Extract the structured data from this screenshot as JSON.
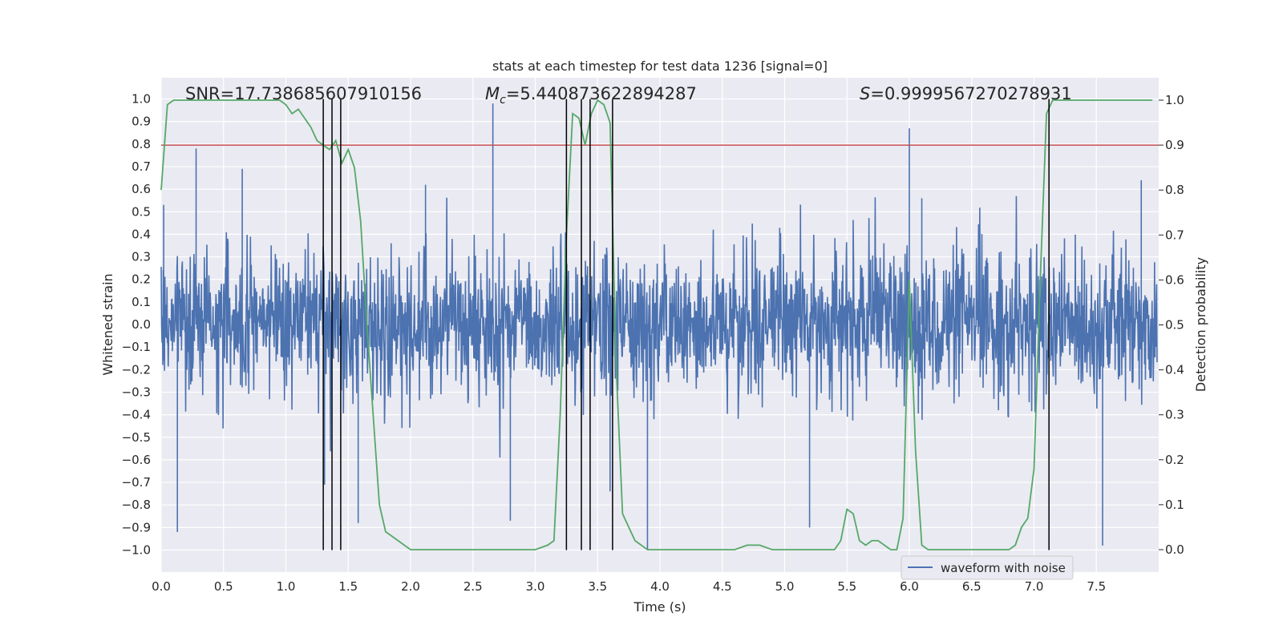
{
  "chart_data": {
    "type": "line",
    "title": "stats at each timestep for test data 1236 [signal=0]",
    "xlabel": "Time (s)",
    "ylabel_left": "Whitened strain",
    "ylabel_right": "Detection probability",
    "xlim": [
      0.0,
      8.0
    ],
    "ylim_left": [
      -1.1,
      1.05
    ],
    "ylim_right": [
      -0.05,
      1.035
    ],
    "x_ticks": [
      "0.0",
      "0.5",
      "1.0",
      "1.5",
      "2.0",
      "2.5",
      "3.0",
      "3.5",
      "4.0",
      "4.5",
      "5.0",
      "5.5",
      "6.0",
      "6.5",
      "7.0",
      "7.5"
    ],
    "y_ticks_left": [
      "1.0",
      "0.9",
      "0.8",
      "0.7",
      "0.6",
      "0.5",
      "0.4",
      "0.3",
      "0.2",
      "0.1",
      "0.0",
      "−0.1",
      "−0.2",
      "−0.3",
      "−0.4",
      "−0.5",
      "−0.6",
      "−0.7",
      "−0.8",
      "−0.9",
      "−1.0"
    ],
    "y_ticks_right": [
      "1.0",
      "0.9",
      "0.8",
      "0.7",
      "0.6",
      "0.5",
      "0.4",
      "0.3",
      "0.2",
      "0.1",
      "0.0"
    ],
    "annotations": {
      "snr": "SNR=17.738685607910156",
      "mc_prefix": "M",
      "mc_sub": "c",
      "mc_value": "=5.440873622894287",
      "s_prefix": "S",
      "s_value": "=0.9999567270278931"
    },
    "grid": true,
    "legend": {
      "position": "lower-right",
      "entries": [
        "waveform with noise"
      ]
    },
    "threshold_right": 0.9,
    "vlines_x": [
      1.3,
      1.37,
      1.44,
      3.25,
      3.37,
      3.44,
      3.62,
      7.12
    ],
    "colors": {
      "waveform": "#4c72b0",
      "probability": "#55a868",
      "threshold": "#c44e52",
      "vlines": "#000000",
      "background": "#eaeaf2",
      "grid": "#ffffff"
    },
    "series": [
      {
        "name": "waveform with noise",
        "axis": "left",
        "typical_abs_amplitude": 0.35,
        "sample_peaks": [
          [
            0.02,
            0.53
          ],
          [
            0.13,
            -0.92
          ],
          [
            0.28,
            0.78
          ],
          [
            0.65,
            0.69
          ],
          [
            1.31,
            -0.71
          ],
          [
            1.58,
            -0.88
          ],
          [
            2.12,
            0.62
          ],
          [
            2.66,
            0.98
          ],
          [
            2.8,
            -0.87
          ],
          [
            3.6,
            -0.74
          ],
          [
            3.9,
            -1.0
          ],
          [
            5.2,
            -0.9
          ],
          [
            6.0,
            0.87
          ],
          [
            6.1,
            0.56
          ],
          [
            7.55,
            -0.98
          ],
          [
            7.86,
            0.64
          ]
        ]
      },
      {
        "name": "detection probability",
        "axis": "right",
        "x": [
          0.0,
          0.05,
          0.1,
          0.2,
          0.3,
          0.5,
          0.7,
          0.9,
          0.95,
          1.0,
          1.05,
          1.1,
          1.2,
          1.25,
          1.3,
          1.35,
          1.4,
          1.45,
          1.5,
          1.55,
          1.6,
          1.65,
          1.7,
          1.75,
          1.8,
          1.9,
          2.0,
          2.1,
          2.2,
          2.3,
          2.4,
          2.5,
          2.6,
          2.7,
          2.8,
          2.9,
          3.0,
          3.1,
          3.15,
          3.2,
          3.25,
          3.3,
          3.35,
          3.4,
          3.45,
          3.5,
          3.55,
          3.6,
          3.65,
          3.7,
          3.75,
          3.8,
          3.9,
          4.0,
          4.2,
          4.4,
          4.5,
          4.6,
          4.7,
          4.8,
          4.9,
          5.0,
          5.1,
          5.2,
          5.3,
          5.4,
          5.45,
          5.5,
          5.55,
          5.6,
          5.65,
          5.7,
          5.75,
          5.8,
          5.85,
          5.9,
          5.95,
          6.0,
          6.05,
          6.1,
          6.15,
          6.2,
          6.25,
          6.3,
          6.35,
          6.4,
          6.5,
          6.6,
          6.7,
          6.8,
          6.85,
          6.9,
          6.95,
          7.0,
          7.05,
          7.1,
          7.15,
          7.2,
          7.25,
          7.3,
          7.5,
          7.7,
          7.95
        ],
        "y": [
          0.8,
          0.99,
          1.0,
          1.0,
          1.0,
          1.0,
          1.0,
          1.0,
          1.0,
          0.99,
          0.97,
          0.98,
          0.94,
          0.91,
          0.9,
          0.89,
          0.91,
          0.86,
          0.89,
          0.85,
          0.73,
          0.5,
          0.3,
          0.1,
          0.04,
          0.02,
          0.0,
          0.0,
          0.0,
          0.0,
          0.0,
          0.0,
          0.0,
          0.0,
          0.0,
          0.0,
          0.0,
          0.01,
          0.02,
          0.3,
          0.7,
          0.97,
          0.96,
          0.9,
          0.97,
          1.0,
          0.99,
          0.95,
          0.4,
          0.08,
          0.05,
          0.02,
          0.0,
          0.0,
          0.0,
          0.0,
          0.0,
          0.0,
          0.01,
          0.01,
          0.0,
          0.0,
          0.0,
          0.0,
          0.0,
          0.0,
          0.02,
          0.09,
          0.08,
          0.02,
          0.01,
          0.02,
          0.02,
          0.01,
          0.0,
          0.0,
          0.07,
          0.6,
          0.22,
          0.01,
          0.0,
          0.0,
          0.0,
          0.0,
          0.0,
          0.0,
          0.0,
          0.0,
          0.0,
          0.0,
          0.01,
          0.05,
          0.07,
          0.18,
          0.6,
          0.97,
          1.0,
          1.0,
          1.0,
          1.0,
          1.0,
          1.0,
          1.0
        ]
      }
    ]
  }
}
